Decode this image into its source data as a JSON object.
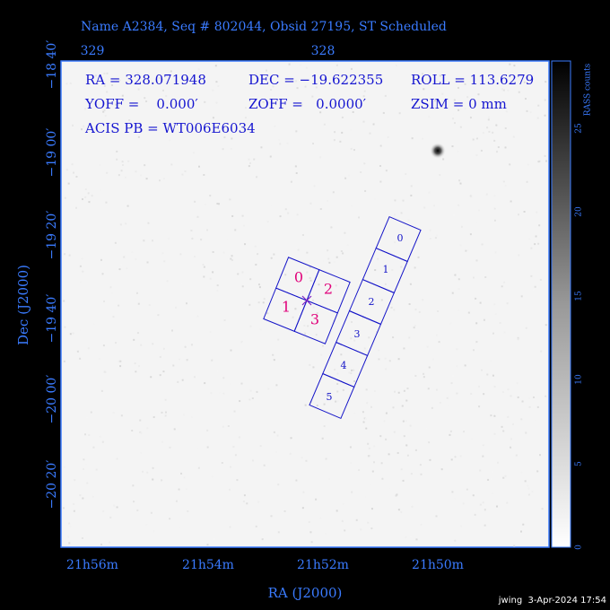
{
  "header": {
    "title": "Name A2384, Seq # 802044, Obsid 27195, ST Scheduled"
  },
  "top_axis": {
    "labels": [
      "329",
      "328"
    ]
  },
  "info": {
    "lines": [
      "RA = 328.071948",
      "DEC = −19.622355",
      "ROLL = 113.6279",
      "YOFF =    0.000′",
      "ZOFF =   0.0000′",
      "ZSIM = 0 mm",
      "ACIS PB = WT006E6034"
    ]
  },
  "left_axis": {
    "labels": [
      "−18 40′",
      "−19 00′",
      "−19 20′",
      "−19 40′",
      "−20 00′",
      "−20 20′"
    ],
    "title": "Dec (J2000)"
  },
  "bottom_axis": {
    "labels": [
      "21h56m",
      "21h54m",
      "21h52m",
      "21h50m"
    ],
    "title": "RA (J2000)"
  },
  "colorbar": {
    "title": "RASS counts",
    "labels": [
      "0",
      "5",
      "10",
      "15",
      "20",
      "25"
    ]
  },
  "acis_i": {
    "labels": [
      "0",
      "1",
      "2",
      "3"
    ]
  },
  "acis_s": {
    "labels": [
      "0",
      "1",
      "2",
      "3",
      "4",
      "5"
    ]
  },
  "footer": "jwing  3-Apr-2024 17:54"
}
